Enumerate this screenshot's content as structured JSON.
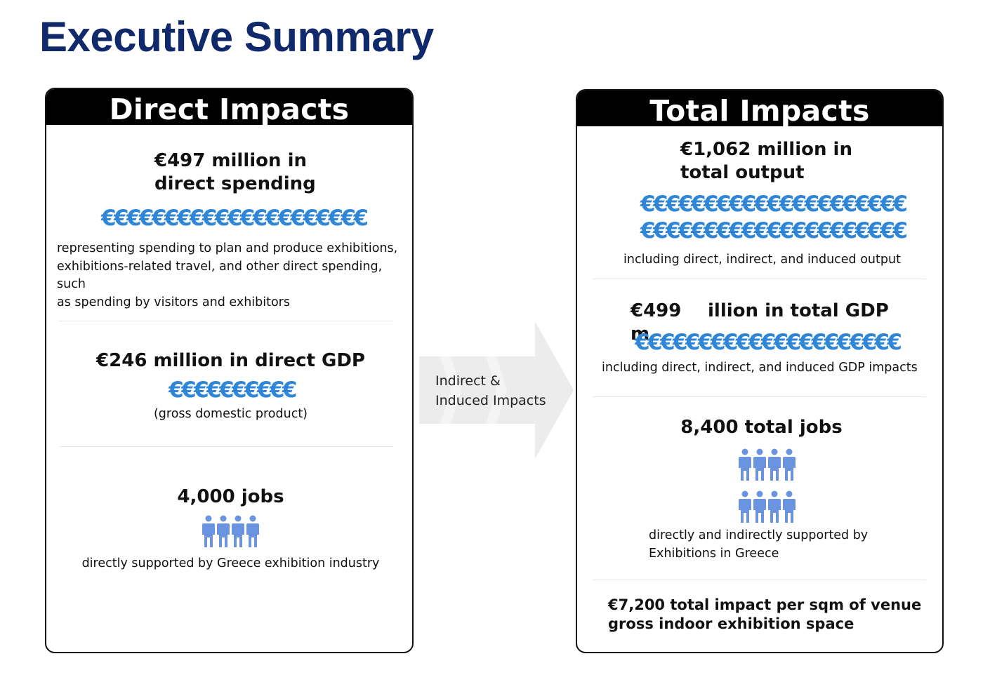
{
  "page": {
    "title": "Executive Summary"
  },
  "direct": {
    "header": "Direct Impacts",
    "spending_headline_1": "€497 million in",
    "spending_headline_2": "direct spending",
    "spending_euros": "€€€€€€€€€€€€€€€€€€€€€",
    "spending_desc_1": "representing spending to plan and produce exhibitions,",
    "spending_desc_2": "exhibitions-related travel, and other direct spending, such",
    "spending_desc_3": "as spending by visitors and exhibitors",
    "gdp_headline": "€246 million in direct GDP",
    "gdp_euros": "€€€€€€€€€€",
    "gdp_note": "(gross domestic product)",
    "jobs_headline": "4,000 jobs",
    "jobs_icon_count": 4,
    "jobs_note": "directly supported by Greece exhibition industry"
  },
  "arrow": {
    "line_1": "Indirect &",
    "line_2": "Induced Impacts"
  },
  "total": {
    "header": "Total Impacts",
    "output_headline_1": "€1,062 million in",
    "output_headline_2": "total output",
    "output_euros_1": "€€€€€€€€€€€€€€€€€€€€€",
    "output_euros_2": "€€€€€€€€€€€€€€€€€€€€€",
    "output_note": "including direct, indirect, and induced output",
    "gdp_headline_a": "€499",
    "gdp_headline_b": "illion in total GDP",
    "gdp_headline_c": "m",
    "gdp_euros": "€€€€€€€€€€€€€€€€€€€€€",
    "gdp_note": "including direct, indirect, and induced GDP impacts",
    "jobs_headline": "8,400 total jobs",
    "jobs_icon_count": 8,
    "jobs_note_1": "directly and indirectly supported by",
    "jobs_note_2": "Exhibitions in Greece",
    "sqm_line_1": "€7,200 total impact per sqm of venue",
    "sqm_line_2": "gross indoor exhibition space"
  },
  "colors": {
    "title": "#10296b",
    "euro": "#2f86d6",
    "person": "#6a93e0",
    "arrow": "#ececec"
  },
  "icons": {
    "person": "person-icon",
    "arrow": "right-arrow-icon"
  }
}
